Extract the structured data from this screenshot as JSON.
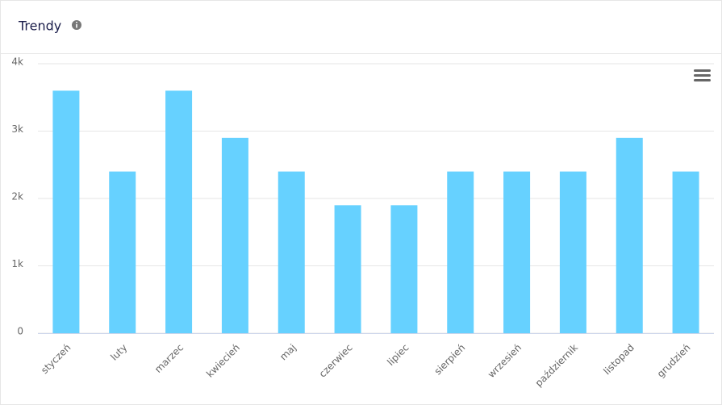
{
  "chart_data": {
    "type": "bar",
    "title": "Trendy",
    "categories": [
      "styczeń",
      "luty",
      "marzec",
      "kwiecień",
      "maj",
      "czerwiec",
      "lipiec",
      "sierpień",
      "wrzesień",
      "październik",
      "listopad",
      "grudzień"
    ],
    "values": [
      3600,
      2400,
      3600,
      2900,
      2400,
      1900,
      1900,
      2400,
      2400,
      2400,
      2900,
      2400
    ],
    "color": "#66d1ff",
    "ylim": [
      0,
      4000
    ],
    "yticks": [
      0,
      {
        "value": 1000,
        "label": "1k"
      },
      {
        "value": 2000,
        "label": "2k"
      },
      {
        "value": 3000,
        "label": "3k"
      },
      {
        "value": 4000,
        "label": "4k"
      }
    ],
    "grid": true
  }
}
